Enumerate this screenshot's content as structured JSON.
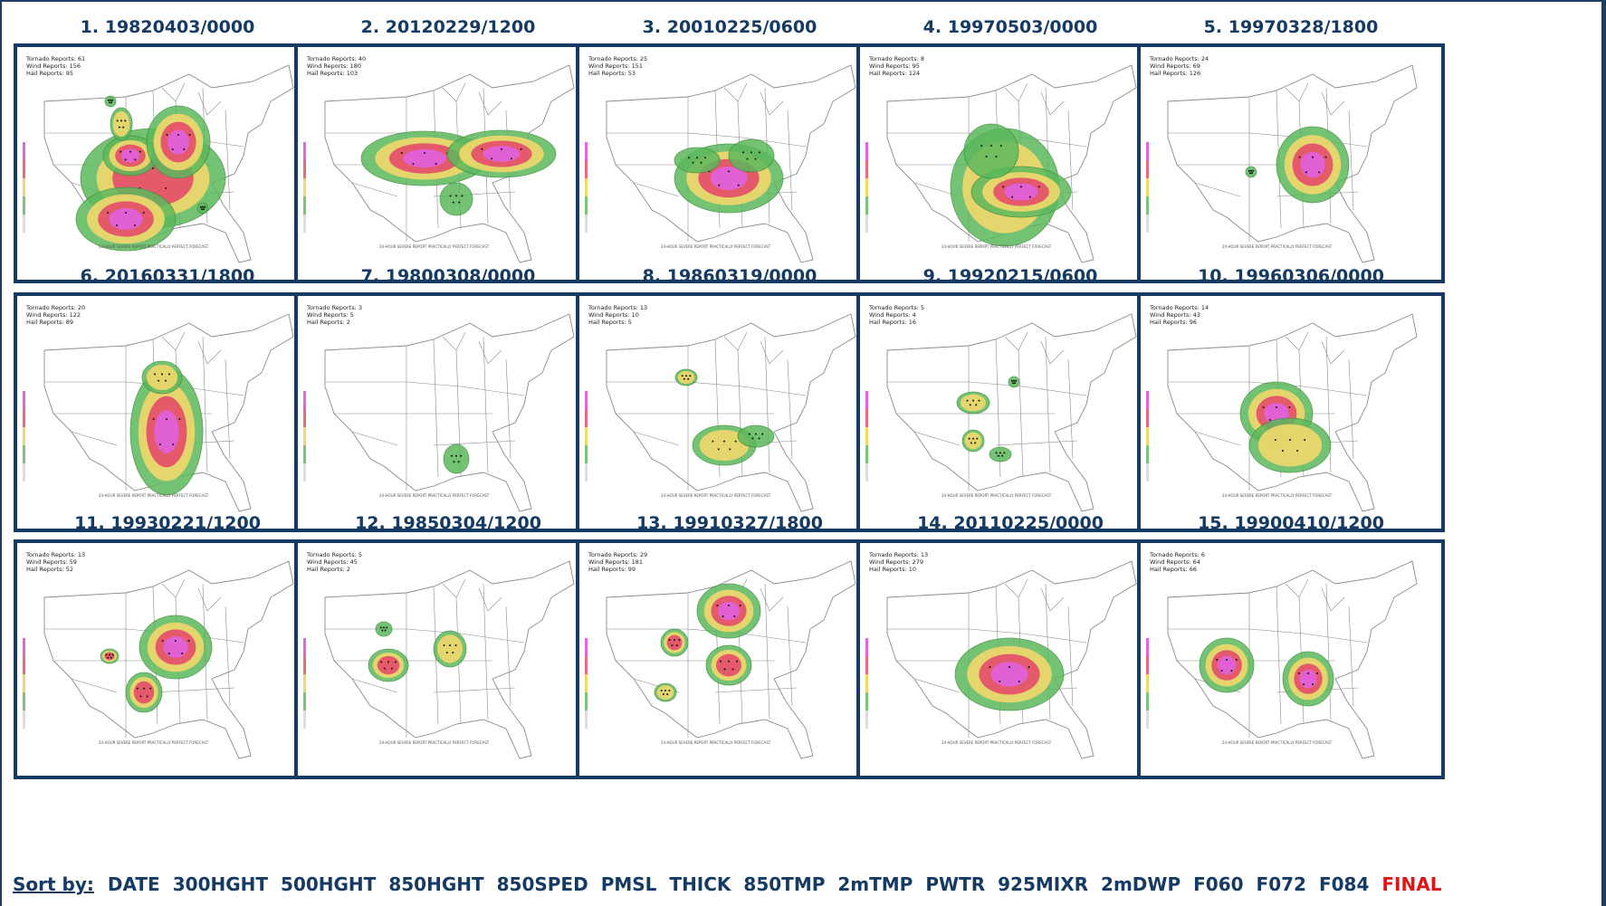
{
  "panels": [
    {
      "title": "1. 19820403/0000",
      "tornado": "Tornado Reports: 61",
      "wind": "Wind Reports: 156",
      "hail": "Hail Reports: 95",
      "blobs": [
        {
          "cx": 150,
          "cy": 145,
          "rx": 80,
          "ry": 55,
          "lvl": 2
        },
        {
          "cx": 120,
          "cy": 190,
          "rx": 55,
          "ry": 35,
          "lvl": 3
        },
        {
          "cx": 125,
          "cy": 120,
          "rx": 30,
          "ry": 22,
          "lvl": 3
        },
        {
          "cx": 178,
          "cy": 105,
          "rx": 35,
          "ry": 40,
          "lvl": 3
        },
        {
          "cx": 115,
          "cy": 85,
          "rx": 12,
          "ry": 18,
          "lvl": 1
        },
        {
          "cx": 103,
          "cy": 60,
          "rx": 6,
          "ry": 6,
          "lvl": 0
        },
        {
          "cx": 205,
          "cy": 178,
          "rx": 6,
          "ry": 6,
          "lvl": 0
        }
      ]
    },
    {
      "title": "2. 20120229/1200",
      "tornado": "Tornado Reports: 40",
      "wind": "Wind Reports: 180",
      "hail": "Hail Reports: 103",
      "blobs": [
        {
          "cx": 140,
          "cy": 123,
          "rx": 70,
          "ry": 30,
          "lvl": 3
        },
        {
          "cx": 225,
          "cy": 118,
          "rx": 60,
          "ry": 26,
          "lvl": 3
        },
        {
          "cx": 175,
          "cy": 168,
          "rx": 18,
          "ry": 18,
          "lvl": 0
        }
      ]
    },
    {
      "title": "3. 20010225/0600",
      "tornado": "Tornado Reports: 25",
      "wind": "Wind Reports: 151",
      "hail": "Hail Reports: 53",
      "blobs": [
        {
          "cx": 165,
          "cy": 145,
          "rx": 60,
          "ry": 38,
          "lvl": 3
        },
        {
          "cx": 130,
          "cy": 125,
          "rx": 25,
          "ry": 14,
          "lvl": 0
        },
        {
          "cx": 190,
          "cy": 120,
          "rx": 25,
          "ry": 18,
          "lvl": 0
        }
      ]
    },
    {
      "title": "4. 19970503/0000",
      "tornado": "Tornado Reports: 8",
      "wind": "Wind Reports: 95",
      "hail": "Hail Reports: 124",
      "blobs": [
        {
          "cx": 160,
          "cy": 155,
          "rx": 60,
          "ry": 65,
          "lvl": 1
        },
        {
          "cx": 178,
          "cy": 160,
          "rx": 55,
          "ry": 28,
          "lvl": 3
        },
        {
          "cx": 145,
          "cy": 115,
          "rx": 30,
          "ry": 30,
          "lvl": 0
        }
      ]
    },
    {
      "title": "5. 19970328/1800",
      "tornado": "Tornado Reports: 24",
      "wind": "Wind Reports: 69",
      "hail": "Hail Reports: 126",
      "blobs": [
        {
          "cx": 190,
          "cy": 130,
          "rx": 40,
          "ry": 42,
          "lvl": 3
        },
        {
          "cx": 122,
          "cy": 138,
          "rx": 6,
          "ry": 6,
          "lvl": 0
        }
      ]
    },
    {
      "title": "6. 20160331/1800",
      "tornado": "Tornado Reports: 20",
      "wind": "Wind Reports: 122",
      "hail": "Hail Reports: 89",
      "blobs": [
        {
          "cx": 165,
          "cy": 150,
          "rx": 40,
          "ry": 70,
          "lvl": 3
        },
        {
          "cx": 160,
          "cy": 90,
          "rx": 22,
          "ry": 18,
          "lvl": 1
        }
      ]
    },
    {
      "title": "7. 19800308/0000",
      "tornado": "Tornado Reports: 3",
      "wind": "Wind Reports: 5",
      "hail": "Hail Reports: 2",
      "blobs": [
        {
          "cx": 175,
          "cy": 180,
          "rx": 14,
          "ry": 16,
          "lvl": 0
        }
      ]
    },
    {
      "title": "8. 19860319/0000",
      "tornado": "Tornado Reports: 13",
      "wind": "Wind Reports: 10",
      "hail": "Hail Reports: 5",
      "blobs": [
        {
          "cx": 160,
          "cy": 165,
          "rx": 35,
          "ry": 22,
          "lvl": 1
        },
        {
          "cx": 118,
          "cy": 90,
          "rx": 12,
          "ry": 9,
          "lvl": 1
        },
        {
          "cx": 195,
          "cy": 155,
          "rx": 20,
          "ry": 12,
          "lvl": 0
        }
      ]
    },
    {
      "title": "9. 19920215/0600",
      "tornado": "Tornado Reports: 5",
      "wind": "Wind Reports: 4",
      "hail": "Hail Reports: 16",
      "blobs": [
        {
          "cx": 125,
          "cy": 118,
          "rx": 18,
          "ry": 12,
          "lvl": 1
        },
        {
          "cx": 125,
          "cy": 160,
          "rx": 12,
          "ry": 12,
          "lvl": 1
        },
        {
          "cx": 155,
          "cy": 175,
          "rx": 12,
          "ry": 8,
          "lvl": 0
        },
        {
          "cx": 170,
          "cy": 95,
          "rx": 6,
          "ry": 6,
          "lvl": 0
        }
      ]
    },
    {
      "title": "10. 19960306/0000",
      "tornado": "Tornado Reports: 14",
      "wind": "Wind Reports: 43",
      "hail": "Hail Reports: 96",
      "blobs": [
        {
          "cx": 150,
          "cy": 130,
          "rx": 40,
          "ry": 35,
          "lvl": 3
        },
        {
          "cx": 165,
          "cy": 165,
          "rx": 45,
          "ry": 30,
          "lvl": 1
        }
      ]
    },
    {
      "title": "11. 19930221/1200",
      "tornado": "Tornado Reports: 13",
      "wind": "Wind Reports: 59",
      "hail": "Hail Reports: 52",
      "blobs": [
        {
          "cx": 175,
          "cy": 115,
          "rx": 40,
          "ry": 35,
          "lvl": 3
        },
        {
          "cx": 140,
          "cy": 165,
          "rx": 20,
          "ry": 22,
          "lvl": 2
        },
        {
          "cx": 102,
          "cy": 125,
          "rx": 10,
          "ry": 8,
          "lvl": 2
        }
      ]
    },
    {
      "title": "12. 19850304/1200",
      "tornado": "Tornado Reports: 5",
      "wind": "Wind Reports: 45",
      "hail": "Hail Reports: 2",
      "blobs": [
        {
          "cx": 100,
          "cy": 135,
          "rx": 22,
          "ry": 18,
          "lvl": 2
        },
        {
          "cx": 168,
          "cy": 117,
          "rx": 18,
          "ry": 20,
          "lvl": 1
        },
        {
          "cx": 95,
          "cy": 95,
          "rx": 9,
          "ry": 8,
          "lvl": 0
        }
      ]
    },
    {
      "title": "13. 19910327/1800",
      "tornado": "Tornado Reports: 29",
      "wind": "Wind Reports: 181",
      "hail": "Hail Reports: 99",
      "blobs": [
        {
          "cx": 165,
          "cy": 75,
          "rx": 35,
          "ry": 30,
          "lvl": 3
        },
        {
          "cx": 165,
          "cy": 135,
          "rx": 25,
          "ry": 22,
          "lvl": 2
        },
        {
          "cx": 105,
          "cy": 110,
          "rx": 15,
          "ry": 15,
          "lvl": 2
        },
        {
          "cx": 95,
          "cy": 165,
          "rx": 12,
          "ry": 10,
          "lvl": 1
        }
      ]
    },
    {
      "title": "14. 20110225/0000",
      "tornado": "Tornado Reports: 13",
      "wind": "Wind Reports: 279",
      "hail": "Hail Reports: 10",
      "blobs": [
        {
          "cx": 165,
          "cy": 145,
          "rx": 60,
          "ry": 40,
          "lvl": 3
        }
      ]
    },
    {
      "title": "15. 19900410/1200",
      "tornado": "Tornado Reports: 6",
      "wind": "Wind Reports: 64",
      "hail": "Hail Reports: 66",
      "blobs": [
        {
          "cx": 95,
          "cy": 135,
          "rx": 30,
          "ry": 30,
          "lvl": 3
        },
        {
          "cx": 185,
          "cy": 150,
          "rx": 28,
          "ry": 30,
          "lvl": 3
        }
      ]
    }
  ],
  "footer_text": "24-HOUR SEVERE REPORT PRACTICALLY PERFECT FORECAST",
  "sort": {
    "label": "Sort by:",
    "options": [
      "DATE",
      "300HGHT",
      "500HGHT",
      "850HGHT",
      "850SPED",
      "PMSL",
      "THICK",
      "850TMP",
      "2mTMP",
      "PWTR",
      "925MIXR",
      "2mDWP",
      "F060",
      "F072",
      "F084",
      "FINAL"
    ],
    "active": "FINAL"
  },
  "colors": {
    "frame": "#153a63",
    "level0": "#5cb85c",
    "level1": "#f1d86b",
    "level2": "#e44d6b",
    "level3": "#e060e0",
    "active_sort": "#e01515"
  }
}
